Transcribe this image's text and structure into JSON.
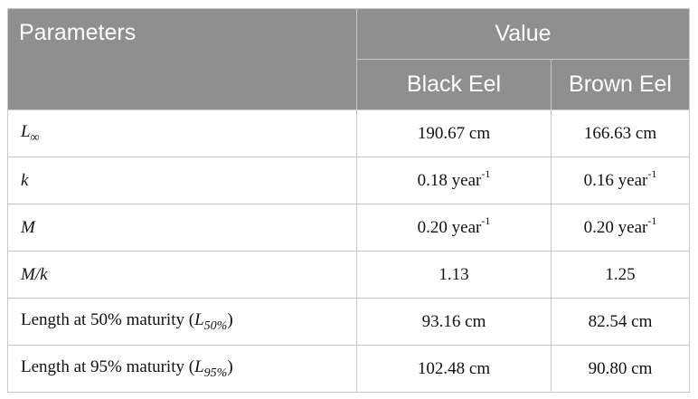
{
  "header": {
    "parameters": "Parameters",
    "value": "Value",
    "black_eel": "Black Eel",
    "brown_eel": "Brown Eel"
  },
  "rows": [
    {
      "param_symbol": "L",
      "param_sub": "∞",
      "black": "190.67 cm",
      "brown": "166.63 cm"
    },
    {
      "param_symbol": "k",
      "black": "0.18 year",
      "black_sup": "-1",
      "brown": "0.16 year",
      "brown_sup": "-1"
    },
    {
      "param_symbol": "M",
      "black": "0.20 year",
      "black_sup": "-1",
      "brown": "0.20 year",
      "brown_sup": "-1"
    },
    {
      "param_symbol": "M/k",
      "black": "1.13",
      "brown": "1.25"
    },
    {
      "param_prefix": "Length at 50% maturity (",
      "param_symbol": "L",
      "param_sub": "50%",
      "param_suffix": ")",
      "black": "93.16 cm",
      "brown": "82.54 cm"
    },
    {
      "param_prefix": "Length at 95% maturity (",
      "param_symbol": "L",
      "param_sub": "95%",
      "param_suffix": ")",
      "black": "102.48 cm",
      "brown": "90.80 cm"
    }
  ]
}
